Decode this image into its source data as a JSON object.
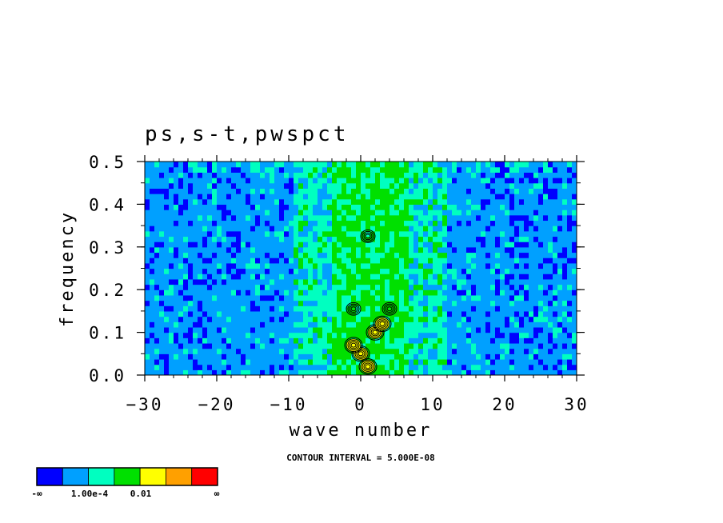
{
  "chart_data": {
    "type": "heatmap",
    "title": "ps,s-t,pwspct",
    "xlabel": "wave number",
    "ylabel": "frequency",
    "xlim": [
      -30,
      30
    ],
    "ylim": [
      0,
      0.5
    ],
    "x_ticks": [
      -30,
      -20,
      -10,
      0,
      10,
      20,
      30
    ],
    "x_tick_labels": [
      "−30",
      "−20",
      "−10",
      "0",
      "10",
      "20",
      "30"
    ],
    "y_ticks": [
      0,
      0.1,
      0.2,
      0.3,
      0.4,
      0.5
    ],
    "y_tick_labels": [
      "0.0",
      "0.1",
      "0.2",
      "0.3",
      "0.4",
      "0.5"
    ],
    "grid": false,
    "note": "CONTOUR INTERVAL = 5.000E-08",
    "colorbar": {
      "colors": [
        "#0000ff",
        "#00a0ff",
        "#00ffc0",
        "#00e000",
        "#ffff00",
        "#ffa000",
        "#ff0000"
      ],
      "labels": [
        "-∞",
        "1.00e-4",
        "0.01",
        "∞"
      ]
    },
    "field_summary": {
      "bands": [
        {
          "x_range": [
            -30,
            -16
          ],
          "dominant_level": 1
        },
        {
          "x_range": [
            -16,
            -9
          ],
          "dominant_level": 1
        },
        {
          "x_range": [
            -9,
            -4
          ],
          "dominant_level": 2
        },
        {
          "x_range": [
            -4,
            7
          ],
          "dominant_level": 3
        },
        {
          "x_range": [
            7,
            12
          ],
          "dominant_level": 2
        },
        {
          "x_range": [
            12,
            30
          ],
          "dominant_level": 1
        }
      ],
      "maxima": [
        {
          "x": 1,
          "y": 0.02,
          "level": 4
        },
        {
          "x": 0,
          "y": 0.05,
          "level": 4
        },
        {
          "x": -1,
          "y": 0.07,
          "level": 4
        },
        {
          "x": 2,
          "y": 0.1,
          "level": 4
        },
        {
          "x": 3,
          "y": 0.12,
          "level": 4
        },
        {
          "x": 4,
          "y": 0.155,
          "level": 3
        },
        {
          "x": -1,
          "y": 0.155,
          "level": 3
        },
        {
          "x": 1,
          "y": 0.325,
          "level": 3
        }
      ]
    }
  }
}
